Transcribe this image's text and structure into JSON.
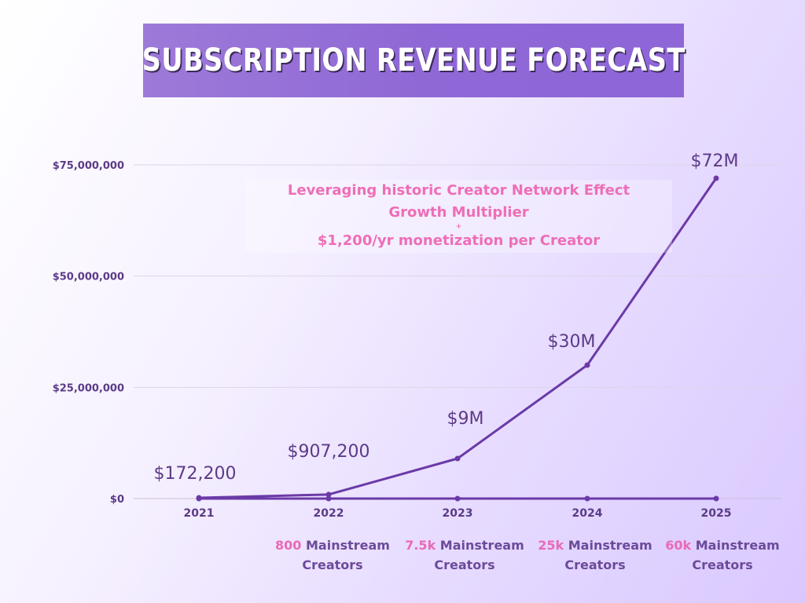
{
  "page": {
    "title": "SUBSCRIPTION REVENUE FORECAST"
  },
  "annotation": {
    "line1": "Leveraging historic Creator Network Effect",
    "line2": "Growth Multiplier",
    "line3": "+",
    "line4": "$1,200/yr monetization per Creator"
  },
  "chart_data": {
    "type": "line",
    "title": "SUBSCRIPTION REVENUE FORECAST",
    "x": [
      "2021",
      "2022",
      "2023",
      "2024",
      "2025"
    ],
    "y_ticks": [
      0,
      25000000,
      50000000,
      75000000
    ],
    "y_tick_labels": [
      "$0",
      "$25,000,000",
      "$50,000,000",
      "$75,000,000"
    ],
    "ylim": [
      0,
      75000000
    ],
    "grid": true,
    "series": [
      {
        "values": [
          172200,
          907200,
          9000000,
          30000000,
          72000000
        ],
        "data_labels": [
          "$172,200",
          "$907,200",
          "$9M",
          "$30M",
          "$72M"
        ],
        "color": "#6b3aa7"
      },
      {
        "values": [
          0,
          0,
          0,
          0,
          0
        ],
        "color": "#6b3aa7"
      }
    ]
  },
  "creator_labels": [
    {
      "count": "800",
      "text": "Mainstream",
      "subtext": "Creators"
    },
    {
      "count": "7.5k",
      "text": "Mainstream",
      "subtext": "Creators"
    },
    {
      "count": "25k",
      "text": "Mainstream",
      "subtext": "Creators"
    },
    {
      "count": "60k",
      "text": "Mainstream",
      "subtext": "Creators"
    }
  ],
  "colors": {
    "accent": "#ea6ab7",
    "primary": "#6b3aa7",
    "text_dark": "#5c3a88",
    "grid": "#ddd6e6",
    "banner": "#9373d6"
  }
}
